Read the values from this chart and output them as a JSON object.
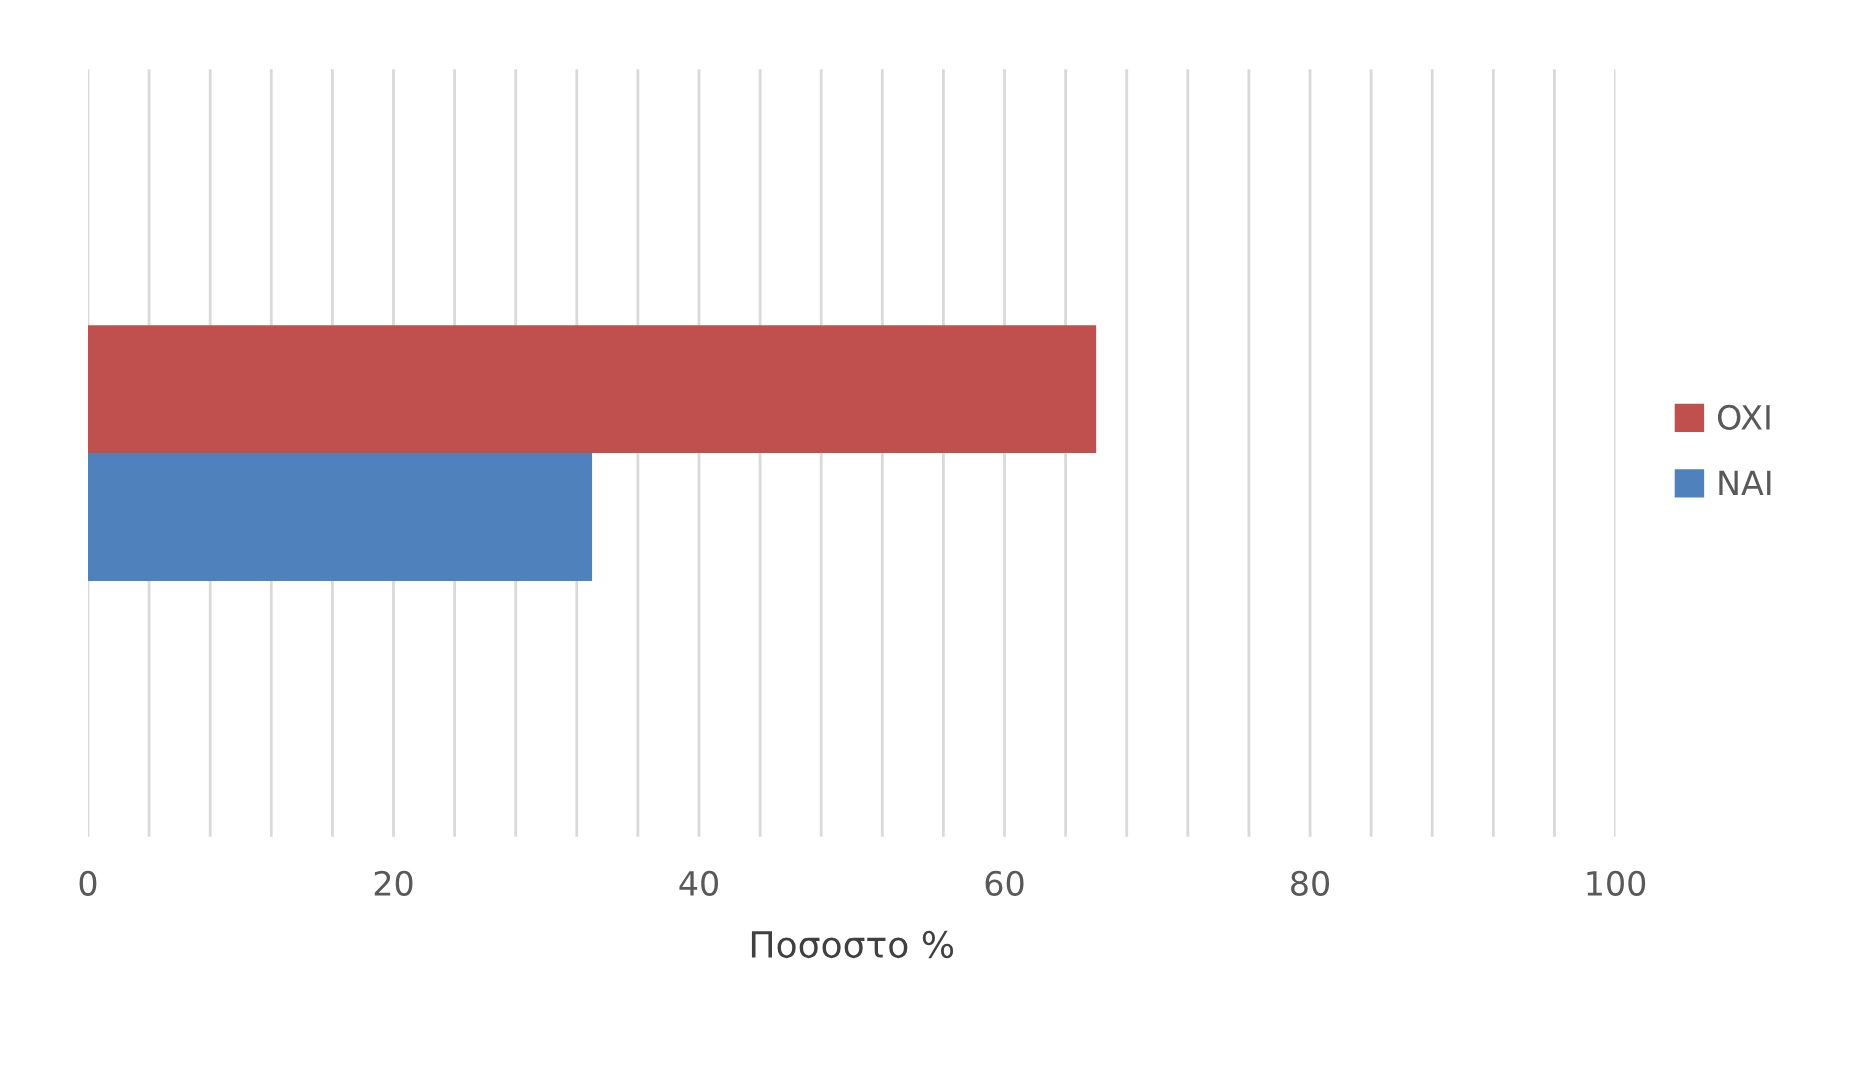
{
  "chart_data": {
    "type": "bar",
    "orientation": "horizontal",
    "xlabel": "Ποσοστο %",
    "categories": [
      null
    ],
    "series": [
      {
        "name": "NAI",
        "color": "#4f81bd",
        "values": [
          33
        ]
      },
      {
        "name": "OXI",
        "color": "#c0504d",
        "values": [
          66
        ]
      }
    ],
    "xlim": [
      0,
      100
    ],
    "xticks": [
      0,
      {
        "value": 4,
        "label": null
      },
      {
        "value": 8,
        "label": null
      },
      {
        "value": 12,
        "label": null
      },
      {
        "value": 16,
        "label": null
      },
      20,
      {
        "value": 24,
        "label": null
      },
      {
        "value": 28,
        "label": null
      },
      {
        "value": 32,
        "label": null
      },
      {
        "value": 36,
        "label": null
      },
      40,
      {
        "value": 44,
        "label": null
      },
      {
        "value": 48,
        "label": null
      },
      {
        "value": 52,
        "label": null
      },
      {
        "value": 56,
        "label": null
      },
      60,
      {
        "value": 64,
        "label": null
      },
      {
        "value": 68,
        "label": null
      },
      {
        "value": 72,
        "label": null
      },
      {
        "value": 76,
        "label": null
      },
      80,
      {
        "value": 84,
        "label": null
      },
      {
        "value": 88,
        "label": null
      },
      {
        "value": 92,
        "label": null
      },
      {
        "value": 96,
        "label": null
      },
      100
    ],
    "grid": "x",
    "legend": "right"
  }
}
